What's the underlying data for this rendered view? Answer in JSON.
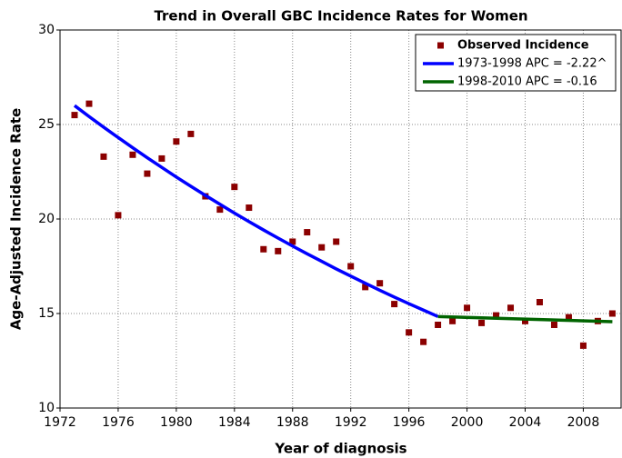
{
  "chart_data": {
    "type": "scatter",
    "title": "Trend in Overall GBC Incidence Rates for Women",
    "x_label": "Year of diagnosis",
    "y_label": "Age-Adjusted Incidence Rate",
    "xlim": [
      1972,
      2010.6
    ],
    "ylim": [
      10,
      30
    ],
    "xticks": [
      1972,
      1976,
      1980,
      1984,
      1988,
      1992,
      1996,
      2000,
      2004,
      2008
    ],
    "yticks": [
      10,
      15,
      20,
      25,
      30
    ],
    "grid": true,
    "legend": "upper right",
    "series": [
      {
        "name": "Observed Incidence",
        "type": "scatter",
        "color": "#8b0000",
        "x": [
          1973,
          1974,
          1975,
          1976,
          1977,
          1978,
          1979,
          1980,
          1981,
          1982,
          1983,
          1984,
          1985,
          1986,
          1987,
          1988,
          1989,
          1990,
          1991,
          1992,
          1993,
          1994,
          1995,
          1996,
          1997,
          1998,
          1999,
          2000,
          2001,
          2002,
          2003,
          2004,
          2005,
          2006,
          2007,
          2008,
          2009,
          2010
        ],
        "values": [
          25.5,
          26.1,
          23.3,
          20.2,
          23.4,
          22.4,
          23.2,
          24.1,
          24.5,
          21.2,
          20.5,
          21.7,
          20.6,
          18.4,
          18.3,
          18.8,
          19.3,
          18.5,
          18.8,
          17.5,
          16.4,
          16.6,
          15.5,
          14.0,
          13.5,
          14.4,
          14.6,
          15.3,
          14.5,
          14.9,
          15.3,
          14.6,
          15.6,
          14.4,
          14.8,
          13.3,
          14.6,
          15.0
        ]
      },
      {
        "name": "1973-1998 APC  = -2.22^",
        "type": "line",
        "color": "#0000ff",
        "x": [
          1973,
          1974,
          1975,
          1976,
          1977,
          1978,
          1979,
          1980,
          1981,
          1982,
          1983,
          1984,
          1985,
          1986,
          1987,
          1988,
          1989,
          1990,
          1991,
          1992,
          1993,
          1994,
          1995,
          1996,
          1997,
          1998
        ],
        "values": [
          26.0,
          25.42,
          24.86,
          24.31,
          23.77,
          23.24,
          22.73,
          22.22,
          21.73,
          21.25,
          20.78,
          20.31,
          19.86,
          19.42,
          18.99,
          18.57,
          18.16,
          17.76,
          17.36,
          16.98,
          16.6,
          16.23,
          15.87,
          15.52,
          15.18,
          14.84
        ]
      },
      {
        "name": "1998-2010 APC  = -0.16",
        "type": "line",
        "color": "#006400",
        "x": [
          1998,
          2010
        ],
        "values": [
          14.84,
          14.57
        ]
      }
    ]
  }
}
